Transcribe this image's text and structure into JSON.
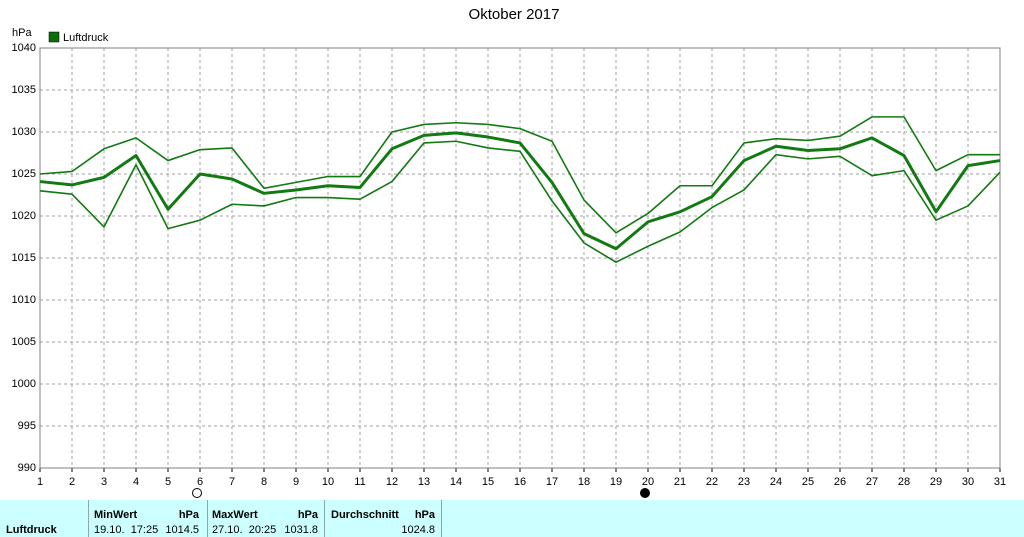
{
  "chart_data": {
    "type": "line",
    "title": "Oktober 2017",
    "y_label": "hPa",
    "legend": "Luftdruck",
    "legend_color": "#0a6e0a",
    "x": [
      1,
      2,
      3,
      4,
      5,
      6,
      7,
      8,
      9,
      10,
      11,
      12,
      13,
      14,
      15,
      16,
      17,
      18,
      19,
      20,
      21,
      22,
      23,
      24,
      25,
      26,
      27,
      28,
      29,
      30,
      31
    ],
    "xlim": [
      1,
      31
    ],
    "xticks": [
      1,
      2,
      3,
      4,
      5,
      6,
      7,
      8,
      9,
      10,
      11,
      12,
      13,
      14,
      15,
      16,
      17,
      18,
      19,
      20,
      21,
      22,
      23,
      24,
      25,
      26,
      27,
      28,
      29,
      30,
      31
    ],
    "ylim": [
      990,
      1040
    ],
    "yticks": [
      990,
      995,
      1000,
      1005,
      1010,
      1015,
      1020,
      1025,
      1030,
      1035,
      1040
    ],
    "grid": true,
    "series": [
      {
        "color": "#117a11",
        "values": [
          1025,
          1025.3,
          1028,
          1029.3,
          1026.6,
          1027.9,
          1028.1,
          1023.3,
          1024,
          1024.7,
          1024.7,
          1030,
          1030.9,
          1031.1,
          1030.9,
          1030.4,
          1028.9,
          1021.9,
          1018,
          1020.3,
          1023.6,
          1023.6,
          1028.7,
          1029.2,
          1029,
          1029.5,
          1031.8,
          1031.8,
          1025.4,
          1027.3,
          1027.3
        ]
      },
      {
        "color": "#117a11",
        "values": [
          1024.1,
          1023.7,
          1024.6,
          1027.2,
          1020.8,
          1025,
          1024.4,
          1022.7,
          1023.1,
          1023.6,
          1023.4,
          1028,
          1029.6,
          1029.9,
          1029.4,
          1028.7,
          1024,
          1017.9,
          1016.1,
          1019.3,
          1020.5,
          1022.3,
          1026.6,
          1028.3,
          1027.8,
          1028,
          1029.3,
          1027.2,
          1020.5,
          1026,
          1026.6
        ]
      },
      {
        "color": "#117a11",
        "values": [
          1023,
          1022.6,
          1018.7,
          1026.1,
          1018.5,
          1019.5,
          1021.4,
          1021.2,
          1022.2,
          1022.2,
          1022,
          1024.1,
          1028.7,
          1028.9,
          1028.1,
          1027.7,
          1021.8,
          1016.8,
          1014.5,
          1016.4,
          1018.1,
          1021,
          1023.1,
          1027.3,
          1026.8,
          1027.1,
          1024.8,
          1025.4,
          1019.5,
          1021.2,
          1025.2
        ]
      }
    ]
  },
  "summary": {
    "row_label": "Luftdruck",
    "columns": [
      {
        "label": "MinWert",
        "unit": "hPa",
        "time": "19.10.  17:25",
        "value": 1014.5
      },
      {
        "label": "MaxWert",
        "unit": "hPa",
        "time": "27.10.  20:25",
        "value": 1031.8
      },
      {
        "label": "Durchschnitt",
        "unit": "hPa",
        "value": 1024.8
      }
    ]
  }
}
